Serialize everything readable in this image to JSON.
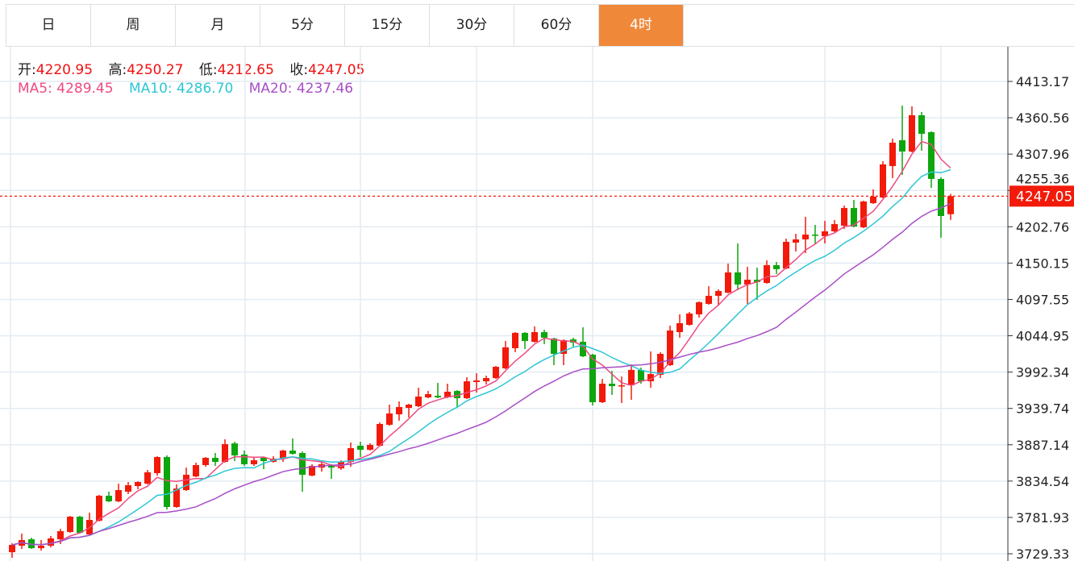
{
  "tabs": [
    {
      "label": "日",
      "active": false
    },
    {
      "label": "周",
      "active": false
    },
    {
      "label": "月",
      "active": false
    },
    {
      "label": "5分",
      "active": false
    },
    {
      "label": "15分",
      "active": false
    },
    {
      "label": "30分",
      "active": false
    },
    {
      "label": "60分",
      "active": false
    },
    {
      "label": "4时",
      "active": true
    }
  ],
  "colors": {
    "accent": "#f0883a",
    "up": "#f21a0a",
    "down": "#0ea60e",
    "ma5": "#ee4a82",
    "ma10": "#2dc6d6",
    "ma20": "#a84ec6",
    "last_price": "#f21a0a"
  },
  "ohlc_legend": {
    "open_label": "开:",
    "open": "4220.95",
    "high_label": "高:",
    "high": "4250.27",
    "low_label": "低:",
    "low": "4212.65",
    "close_label": "收:",
    "close": "4247.05"
  },
  "ma_legend": {
    "ma5_label": "MA5:",
    "ma5": "4289.45",
    "ma10_label": "MA10:",
    "ma10": "4286.70",
    "ma20_label": "MA20:",
    "ma20": "4237.46"
  },
  "chart_data": {
    "type": "candlestick",
    "ylim": [
      3729.33,
      4413.17
    ],
    "y_ticks": [
      "4413.17",
      "4360.56",
      "4307.96",
      "4255.36",
      "4202.76",
      "4150.15",
      "4097.55",
      "4044.95",
      "3992.34",
      "3939.74",
      "3887.14",
      "3834.54",
      "3781.93",
      "3729.33"
    ],
    "last_price": "4247.05",
    "grid": true,
    "moving_averages": [
      5,
      10,
      20
    ],
    "candles": [
      [
        3731.6,
        3744.5,
        3723.5,
        3742.1
      ],
      [
        3741.0,
        3758.5,
        3736.3,
        3749.1
      ],
      [
        3750.3,
        3752.6,
        3736.3,
        3737.4
      ],
      [
        3737.4,
        3749.1,
        3734.0,
        3741.0
      ],
      [
        3741.0,
        3755.0,
        3738.6,
        3751.5
      ],
      [
        3750.3,
        3765.5,
        3743.3,
        3762.0
      ],
      [
        3760.8,
        3784.1,
        3759.6,
        3783.0
      ],
      [
        3783.0,
        3784.1,
        3758.5,
        3759.6
      ],
      [
        3757.3,
        3788.8,
        3756.1,
        3778.3
      ],
      [
        3777.2,
        3814.5,
        3776.0,
        3813.3
      ],
      [
        3813.3,
        3819.2,
        3804.0,
        3805.2
      ],
      [
        3805.2,
        3830.8,
        3804.0,
        3821.5
      ],
      [
        3819.2,
        3833.2,
        3815.7,
        3828.5
      ],
      [
        3827.3,
        3834.3,
        3822.7,
        3833.2
      ],
      [
        3830.8,
        3850.6,
        3829.6,
        3847.2
      ],
      [
        3846.0,
        3870.5,
        3842.5,
        3869.3
      ],
      [
        3869.3,
        3871.7,
        3793.5,
        3797.0
      ],
      [
        3797.0,
        3829.6,
        3795.8,
        3823.8
      ],
      [
        3821.5,
        3854.1,
        3820.3,
        3843.7
      ],
      [
        3841.3,
        3861.2,
        3840.2,
        3857.7
      ],
      [
        3857.7,
        3869.3,
        3855.4,
        3868.2
      ],
      [
        3868.2,
        3875.2,
        3856.5,
        3862.3
      ],
      [
        3862.3,
        3895.0,
        3861.2,
        3888.0
      ],
      [
        3889.1,
        3891.5,
        3863.5,
        3871.7
      ],
      [
        3872.9,
        3878.7,
        3856.5,
        3858.9
      ],
      [
        3858.9,
        3869.3,
        3856.5,
        3864.7
      ],
      [
        3868.2,
        3869.3,
        3851.8,
        3863.5
      ],
      [
        3862.3,
        3870.5,
        3861.2,
        3867.0
      ],
      [
        3867.0,
        3879.9,
        3862.3,
        3878.7
      ],
      [
        3878.7,
        3896.2,
        3872.9,
        3874.0
      ],
      [
        3875.2,
        3877.5,
        3819.2,
        3843.7
      ],
      [
        3842.5,
        3858.9,
        3841.3,
        3856.5
      ],
      [
        3854.1,
        3863.5,
        3848.3,
        3858.9
      ],
      [
        3857.7,
        3858.9,
        3837.8,
        3854.1
      ],
      [
        3853.0,
        3864.7,
        3850.7,
        3862.3
      ],
      [
        3862.3,
        3890.4,
        3855.4,
        3882.2
      ],
      [
        3885.7,
        3891.5,
        3869.3,
        3879.9
      ],
      [
        3879.9,
        3889.2,
        3878.7,
        3886.9
      ],
      [
        3885.7,
        3919.5,
        3884.5,
        3917.2
      ],
      [
        3916.0,
        3945.2,
        3914.8,
        3932.4
      ],
      [
        3931.2,
        3949.9,
        3921.8,
        3941.7
      ],
      [
        3940.5,
        3946.4,
        3926.5,
        3945.2
      ],
      [
        3942.9,
        3969.7,
        3941.7,
        3956.9
      ],
      [
        3955.7,
        3965.0,
        3954.5,
        3960.4
      ],
      [
        3958.0,
        3976.7,
        3954.5,
        3955.7
      ],
      [
        3955.7,
        3975.5,
        3954.5,
        3963.9
      ],
      [
        3965.0,
        3966.2,
        3941.7,
        3954.5
      ],
      [
        3954.5,
        3984.9,
        3953.4,
        3979.0
      ],
      [
        3977.9,
        3990.7,
        3962.7,
        3980.2
      ],
      [
        3979.0,
        3987.2,
        3974.4,
        3983.7
      ],
      [
        3983.7,
        4001.2,
        3982.5,
        4000.0
      ],
      [
        3997.7,
        4037.4,
        3996.5,
        4028.1
      ],
      [
        4026.9,
        4050.2,
        4021.1,
        4049.1
      ],
      [
        4049.1,
        4050.2,
        4025.7,
        4037.4
      ],
      [
        4036.2,
        4058.4,
        4035.0,
        4050.2
      ],
      [
        4050.2,
        4053.7,
        4032.7,
        4042.1
      ],
      [
        4040.9,
        4042.1,
        4002.4,
        4018.7
      ],
      [
        4018.7,
        4039.7,
        4002.4,
        4038.6
      ],
      [
        4039.7,
        4042.1,
        4029.2,
        4035.0
      ],
      [
        4036.2,
        4057.2,
        4014.0,
        4015.2
      ],
      [
        4017.5,
        4018.7,
        3944.0,
        3948.7
      ],
      [
        3948.7,
        3982.5,
        3947.5,
        3975.5
      ],
      [
        3975.5,
        3994.2,
        3959.2,
        3972.0
      ],
      [
        3972.0,
        3986.0,
        3947.5,
        3973.2
      ],
      [
        3973.2,
        4003.6,
        3952.2,
        3995.4
      ],
      [
        3995.4,
        3998.9,
        3975.5,
        3979.0
      ],
      [
        3979.0,
        4022.2,
        3969.7,
        3989.5
      ],
      [
        3988.4,
        4021.1,
        3983.7,
        4018.7
      ],
      [
        4002.4,
        4059.6,
        4001.2,
        4052.5
      ],
      [
        4050.2,
        4075.9,
        4042.1,
        4063.1
      ],
      [
        4060.7,
        4079.4,
        4059.6,
        4077.1
      ],
      [
        4075.9,
        4094.6,
        4071.2,
        4093.4
      ],
      [
        4091.1,
        4116.7,
        4089.9,
        4102.7
      ],
      [
        4102.7,
        4112.1,
        4089.9,
        4109.7
      ],
      [
        4107.4,
        4149.4,
        4106.2,
        4136.6
      ],
      [
        4136.6,
        4178.6,
        4110.9,
        4119.1
      ],
      [
        4119.1,
        4144.8,
        4091.1,
        4126.1
      ],
      [
        4126.1,
        4143.6,
        4096.9,
        4122.6
      ],
      [
        4121.4,
        4154.1,
        4120.3,
        4147.1
      ],
      [
        4147.1,
        4151.8,
        4134.3,
        4141.3
      ],
      [
        4142.4,
        4185.6,
        4141.3,
        4180.9
      ],
      [
        4179.8,
        4192.6,
        4166.9,
        4184.4
      ],
      [
        4184.4,
        4217.1,
        4164.6,
        4191.4
      ],
      [
        4191.4,
        4205.4,
        4177.4,
        4190.3
      ],
      [
        4189.1,
        4211.3,
        4178.6,
        4196.1
      ],
      [
        4196.1,
        4212.4,
        4194.9,
        4206.6
      ],
      [
        4204.3,
        4233.4,
        4199.6,
        4229.9
      ],
      [
        4229.9,
        4241.6,
        4201.9,
        4203.1
      ],
      [
        4201.9,
        4240.5,
        4200.8,
        4239.3
      ],
      [
        4236.9,
        4256.8,
        4235.8,
        4246.3
      ],
      [
        4245.1,
        4297.6,
        4243.9,
        4293.0
      ],
      [
        4290.6,
        4330.3,
        4273.1,
        4324.5
      ],
      [
        4328.0,
        4378.2,
        4277.8,
        4311.6
      ],
      [
        4311.6,
        4377.0,
        4310.5,
        4364.2
      ],
      [
        4364.2,
        4368.9,
        4312.8,
        4337.3
      ],
      [
        4339.7,
        4340.8,
        4259.1,
        4272.0
      ],
      [
        4272.0,
        4274.3,
        4186.8,
        4218.3
      ],
      [
        4220.95,
        4250.27,
        4212.65,
        4247.05
      ]
    ]
  }
}
